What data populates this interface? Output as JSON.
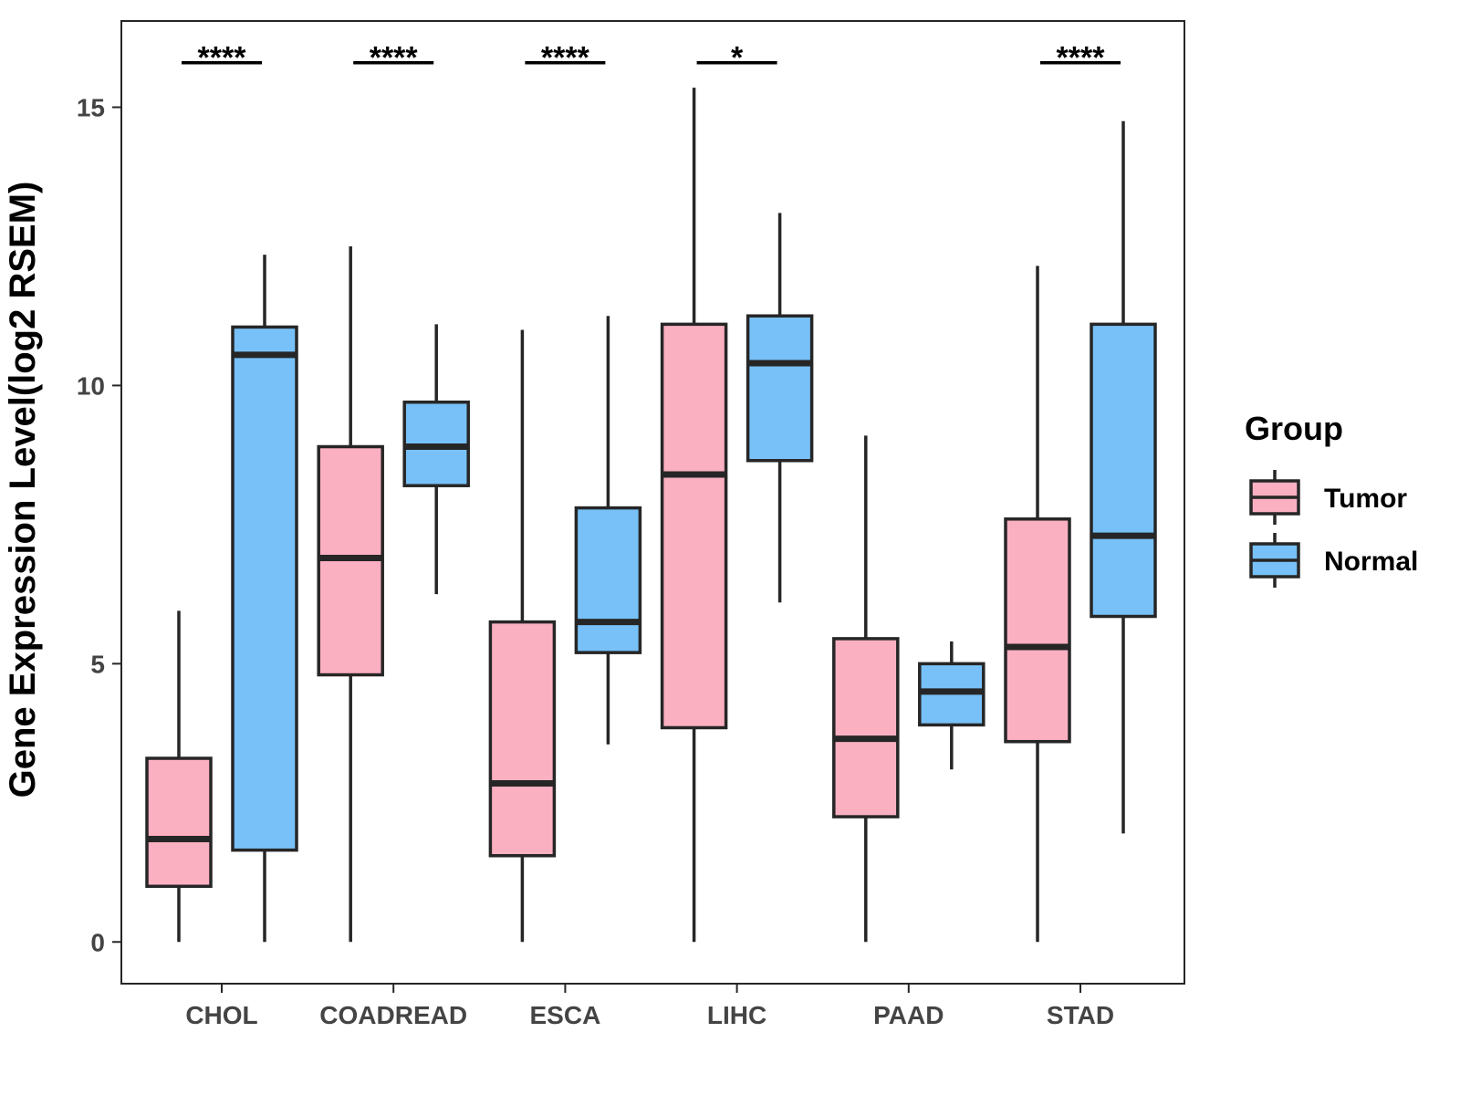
{
  "chart_data": {
    "type": "boxplot",
    "title": "",
    "xlabel": "",
    "ylabel": "Gene Expression Level(log2 RSEM)",
    "ylim": [
      -0.75,
      16.55
    ],
    "yticks": [
      0,
      5,
      10,
      15
    ],
    "categories": [
      "CHOL",
      "COADREAD",
      "ESCA",
      "LIHC",
      "PAAD",
      "STAD"
    ],
    "legend": {
      "title": "Group",
      "position": "right"
    },
    "series": [
      {
        "name": "Tumor",
        "color": "#FBB0C2",
        "boxes": [
          {
            "min": 0.0,
            "q1": 1.0,
            "median": 1.85,
            "q3": 3.3,
            "max": 5.95
          },
          {
            "min": 0.0,
            "q1": 4.8,
            "median": 6.9,
            "q3": 8.9,
            "max": 12.5
          },
          {
            "min": 0.0,
            "q1": 1.55,
            "median": 2.85,
            "q3": 5.75,
            "max": 11.0
          },
          {
            "min": 0.0,
            "q1": 3.85,
            "median": 8.4,
            "q3": 11.1,
            "max": 15.35
          },
          {
            "min": 0.0,
            "q1": 2.25,
            "median": 3.65,
            "q3": 5.45,
            "max": 9.1
          },
          {
            "min": 0.0,
            "q1": 3.6,
            "median": 5.3,
            "q3": 7.6,
            "max": 12.15
          }
        ]
      },
      {
        "name": "Normal",
        "color": "#78C1F8",
        "boxes": [
          {
            "min": 0.0,
            "q1": 1.65,
            "median": 10.55,
            "q3": 11.05,
            "max": 12.35
          },
          {
            "min": 6.25,
            "q1": 8.2,
            "median": 8.9,
            "q3": 9.7,
            "max": 11.1
          },
          {
            "min": 3.55,
            "q1": 5.2,
            "median": 5.75,
            "q3": 7.8,
            "max": 11.25
          },
          {
            "min": 6.1,
            "q1": 8.65,
            "median": 10.4,
            "q3": 11.25,
            "max": 13.1
          },
          {
            "min": 3.1,
            "q1": 3.9,
            "median": 4.5,
            "q3": 5.0,
            "max": 5.4
          },
          {
            "min": 1.95,
            "q1": 5.85,
            "median": 7.3,
            "q3": 11.1,
            "max": 14.75
          }
        ]
      }
    ],
    "significance": [
      {
        "category": "CHOL",
        "label": "****",
        "y": 15.8
      },
      {
        "category": "COADREAD",
        "label": "****",
        "y": 15.8
      },
      {
        "category": "ESCA",
        "label": "****",
        "y": 15.8
      },
      {
        "category": "LIHC",
        "label": "*",
        "y": 15.8
      },
      {
        "category": "STAD",
        "label": "****",
        "y": 15.8
      }
    ],
    "grid": false
  }
}
